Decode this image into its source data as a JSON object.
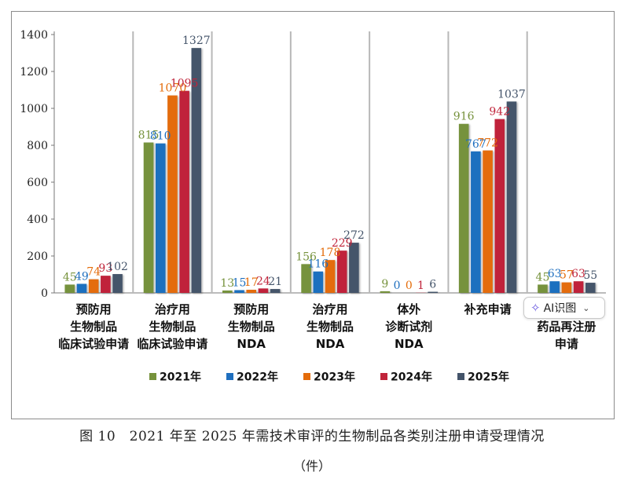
{
  "caption": "图 10　2021 年至 2025 年需技术审评的生物制品各类别注册申请受理情况",
  "unit": "（件）",
  "ai_chip": {
    "label": "AI识图",
    "sparkle_icon": "ai-sparkle-icon",
    "chevron_icon": "chevron-down-icon"
  },
  "chart_data": {
    "type": "bar",
    "categories": [
      [
        "预防用",
        "生物制品",
        "临床试验申请"
      ],
      [
        "治疗用",
        "生物制品",
        "临床试验申请"
      ],
      [
        "预防用",
        "生物制品",
        "NDA"
      ],
      [
        "治疗用",
        "生物制品",
        "NDA"
      ],
      [
        "体外",
        "诊断试剂",
        "NDA"
      ],
      [
        "补充申请"
      ],
      [
        "",
        "药品再注册",
        "申请"
      ]
    ],
    "series": [
      {
        "name": "2021年",
        "color": "#76923c",
        "values": [
          45,
          815,
          13,
          156,
          9,
          916,
          45
        ]
      },
      {
        "name": "2022年",
        "color": "#1f6fbf",
        "values": [
          49,
          810,
          15,
          116,
          0,
          767,
          63
        ]
      },
      {
        "name": "2023年",
        "color": "#e46c0a",
        "values": [
          74,
          1070,
          17,
          178,
          0,
          772,
          57
        ]
      },
      {
        "name": "2024年",
        "color": "#c0243a",
        "values": [
          93,
          1095,
          24,
          229,
          1,
          942,
          63
        ]
      },
      {
        "name": "2025年",
        "color": "#44546a",
        "values": [
          102,
          1327,
          21,
          272,
          6,
          1037,
          55
        ]
      }
    ],
    "ylim": [
      0,
      1400
    ],
    "yticks": [
      0,
      200,
      400,
      600,
      800,
      1000,
      1200,
      1400
    ],
    "grid": false,
    "legend_position": "bottom"
  }
}
